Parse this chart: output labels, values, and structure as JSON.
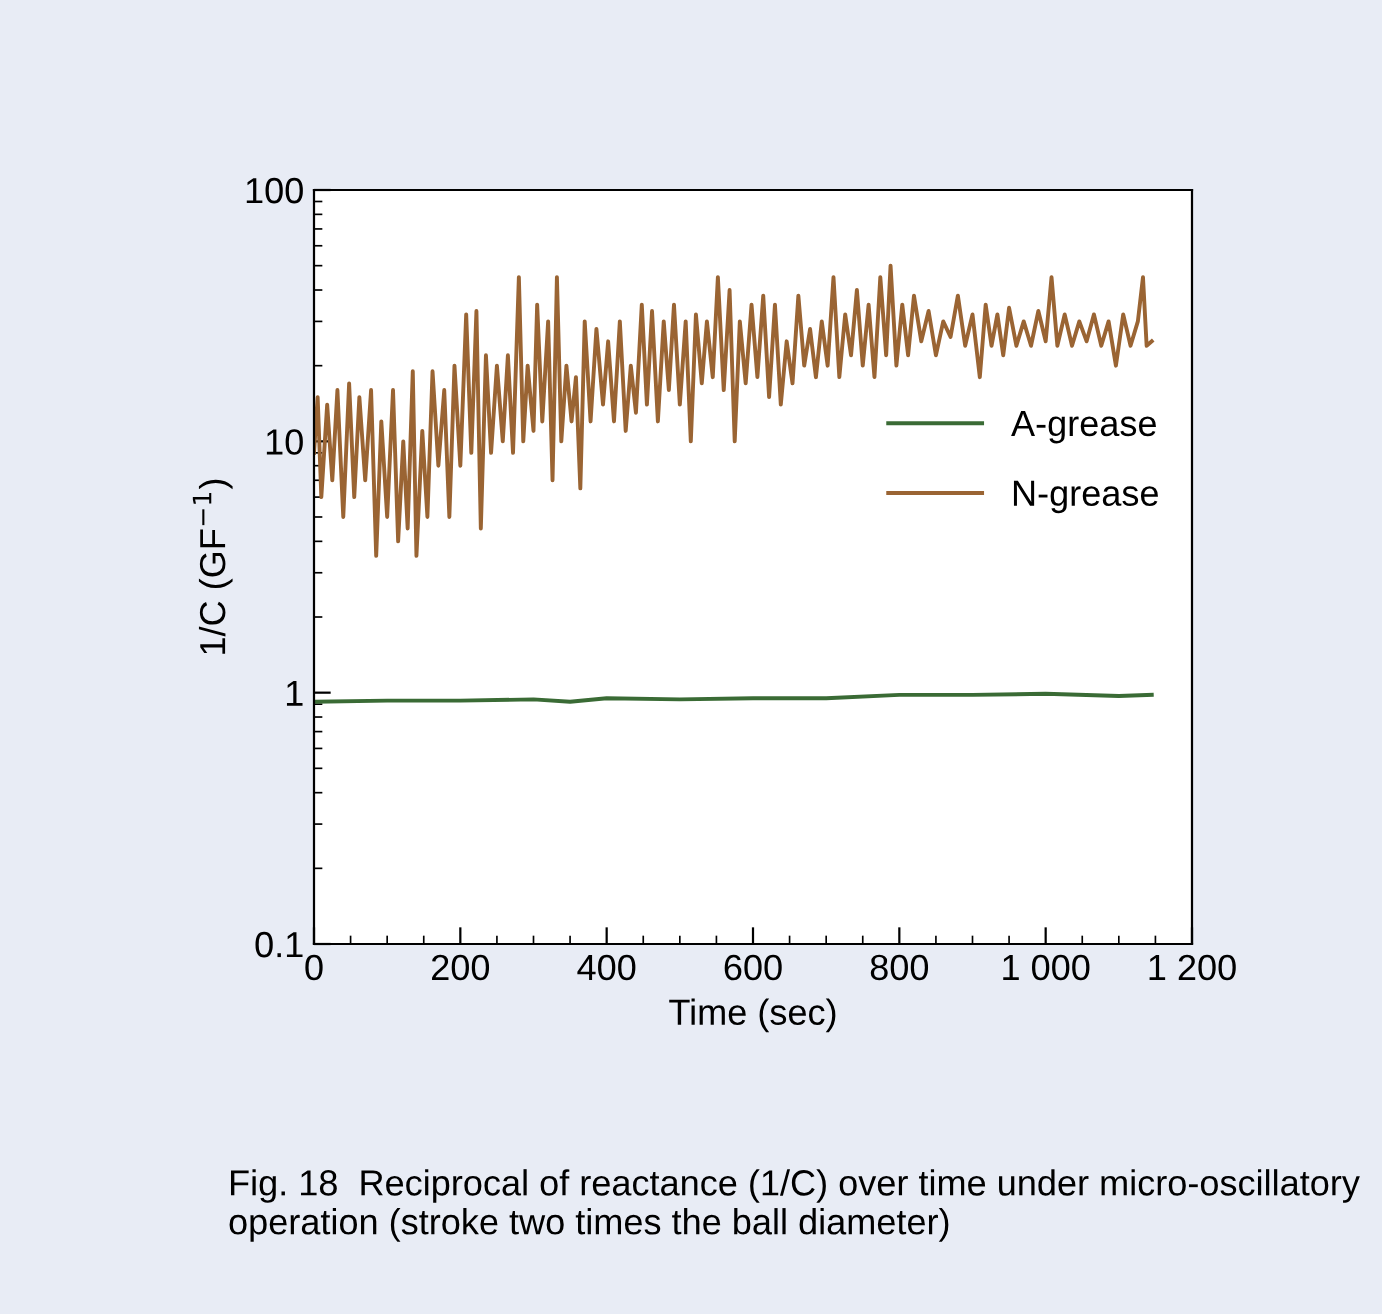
{
  "chart_data": {
    "type": "line",
    "xlabel": "Time (sec)",
    "ylabel": "1/C (GF$^{−1}$)",
    "log": "y",
    "xlim": [
      0,
      1200
    ],
    "ylim": [
      0.1,
      100
    ],
    "xticks": [
      0,
      200,
      400,
      600,
      800,
      {
        "value": 1000,
        "label": "1 000"
      },
      {
        "value": 1200,
        "label": "1 200"
      }
    ],
    "yticks": [
      0.1,
      1,
      10,
      100
    ],
    "grid": false,
    "legend": "right",
    "marker": "none",
    "line_style": "solid",
    "annotations": [
      "Fig. 18  Reciprocal of reactance (1/C) over time under micro-oscillatory operation (stroke two times the ball diameter)"
    ],
    "series": [
      {
        "name": "A-grease",
        "color": "#3a6b35",
        "x": [
          0,
          100,
          200,
          300,
          350,
          400,
          500,
          600,
          700,
          800,
          900,
          1000,
          1100,
          1145
        ],
        "values": [
          0.92,
          0.93,
          0.93,
          0.94,
          0.92,
          0.95,
          0.94,
          0.95,
          0.95,
          0.98,
          0.98,
          0.99,
          0.97,
          0.98
        ]
      },
      {
        "name": "N-grease",
        "color": "#9a6433",
        "x": [
          0,
          5,
          10,
          18,
          25,
          32,
          40,
          48,
          55,
          62,
          70,
          78,
          85,
          92,
          100,
          108,
          115,
          122,
          128,
          135,
          140,
          148,
          155,
          162,
          170,
          178,
          185,
          192,
          200,
          208,
          215,
          222,
          228,
          235,
          242,
          250,
          258,
          265,
          272,
          280,
          286,
          292,
          300,
          305,
          312,
          320,
          326,
          332,
          338,
          345,
          352,
          358,
          364,
          370,
          378,
          386,
          395,
          402,
          410,
          418,
          426,
          433,
          440,
          448,
          455,
          462,
          470,
          478,
          485,
          492,
          500,
          508,
          515,
          522,
          530,
          537,
          545,
          552,
          560,
          568,
          575,
          582,
          590,
          598,
          606,
          614,
          622,
          630,
          638,
          646,
          654,
          662,
          670,
          678,
          686,
          694,
          702,
          710,
          718,
          726,
          734,
          742,
          750,
          758,
          766,
          774,
          782,
          788,
          796,
          804,
          812,
          820,
          830,
          840,
          850,
          860,
          870,
          880,
          890,
          900,
          910,
          918,
          926,
          934,
          942,
          950,
          960,
          970,
          980,
          990,
          1000,
          1008,
          1016,
          1026,
          1036,
          1046,
          1056,
          1066,
          1076,
          1086,
          1096,
          1106,
          1116,
          1126,
          1133,
          1138,
          1145
        ],
        "values": [
          9,
          15,
          6,
          14,
          7,
          16,
          5,
          17,
          6,
          15,
          7,
          16,
          3.5,
          12,
          5,
          16,
          4,
          10,
          4.5,
          19,
          3.5,
          11,
          5,
          19,
          8,
          16,
          5,
          20,
          8,
          32,
          9,
          33,
          4.5,
          22,
          9,
          20,
          10,
          22,
          9,
          45,
          10,
          20,
          11,
          35,
          12,
          30,
          7,
          45,
          10,
          20,
          12,
          18,
          6.5,
          30,
          12,
          28,
          14,
          25,
          12,
          30,
          11,
          20,
          13,
          35,
          14,
          33,
          12,
          30,
          16,
          35,
          14,
          30,
          10,
          32,
          17,
          30,
          18,
          45,
          16,
          40,
          10,
          30,
          17,
          35,
          18,
          38,
          15,
          35,
          14,
          25,
          17,
          38,
          20,
          28,
          18,
          30,
          20,
          45,
          18,
          32,
          22,
          40,
          20,
          35,
          18,
          45,
          22,
          50,
          20,
          35,
          22,
          38,
          25,
          33,
          22,
          30,
          26,
          38,
          24,
          32,
          18,
          35,
          24,
          32,
          22,
          34,
          24,
          30,
          24,
          33,
          25,
          45,
          24,
          32,
          24,
          30,
          25,
          32,
          24,
          30,
          20,
          32,
          24,
          30,
          45,
          24,
          25
        ]
      }
    ]
  }
}
